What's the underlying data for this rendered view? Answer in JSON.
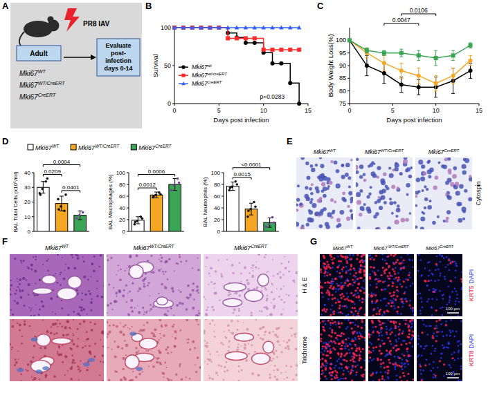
{
  "panel_letters": [
    "A",
    "B",
    "C",
    "D",
    "E",
    "F",
    "G"
  ],
  "schematic": {
    "treatment": "PR8 IAV",
    "group": "Adult",
    "genotypes": [
      "Mki67WT",
      "Mki67WT/CreERT",
      "Mki67CreERT"
    ],
    "outcome": "Evaluate post-infection days 0-14"
  },
  "chart_data": [
    {
      "type": "line",
      "line_style": "step",
      "y_label": "Survival",
      "x_label": "Days post infection",
      "x": [
        0,
        1,
        2,
        3,
        4,
        5,
        6,
        7,
        8,
        9,
        10,
        11,
        12,
        13,
        14
      ],
      "xlim": [
        0,
        15
      ],
      "xticks": [
        0,
        5,
        10,
        15
      ],
      "ylim": [
        0,
        100
      ],
      "yticks": [
        0,
        50,
        100
      ],
      "legend": "lower left",
      "annotations": [
        "p=0.0283"
      ],
      "series": [
        {
          "name": "Mki67wt",
          "color": "#000000",
          "marker": "circle",
          "values": [
            100,
            100,
            100,
            100,
            100,
            100,
            93,
            87,
            80,
            80,
            67,
            53,
            53,
            27,
            0
          ]
        },
        {
          "name": "Mki67wt/creERT",
          "color": "#ff2a2a",
          "marker": "square",
          "values": [
            100,
            100,
            100,
            100,
            100,
            100,
            86,
            86,
            86,
            86,
            71,
            71,
            71,
            71,
            71
          ]
        },
        {
          "name": "Mki67creERT",
          "color": "#3060ff",
          "marker": "triangle",
          "values": [
            100,
            100,
            100,
            100,
            100,
            100,
            100,
            100,
            100,
            100,
            100,
            100,
            100,
            100,
            100
          ]
        }
      ]
    },
    {
      "type": "line",
      "y_label": "Body Weight Loss(%)",
      "x_label": "Days post infection",
      "x": [
        0,
        2,
        4,
        6,
        8,
        10,
        12,
        14
      ],
      "xlim": [
        0,
        15
      ],
      "xticks": [
        0,
        5,
        10,
        15
      ],
      "ylim": [
        75,
        105
      ],
      "yticks": [
        75,
        80,
        85,
        90,
        95,
        100
      ],
      "series": [
        {
          "color": "#000000",
          "marker": "circle",
          "values": [
            100,
            90,
            87,
            82.5,
            81.5,
            81.5,
            84,
            88
          ],
          "errors": [
            0,
            4,
            4,
            3,
            3,
            4,
            5,
            3
          ]
        },
        {
          "color": "#f5a623",
          "marker": "circle",
          "values": [
            100,
            95,
            91,
            88,
            86,
            83,
            86,
            92
          ],
          "errors": [
            0,
            2,
            3,
            3,
            3,
            3,
            3,
            2
          ]
        },
        {
          "color": "#3aa655",
          "marker": "square",
          "values": [
            100,
            96,
            95,
            95,
            94,
            93,
            94,
            98
          ],
          "errors": [
            0,
            1,
            1,
            1.5,
            2,
            3,
            2,
            1
          ]
        }
      ],
      "comparisons": [
        {
          "x": [
            4,
            8
          ],
          "label": "0.0047"
        },
        {
          "x": [
            6,
            10
          ],
          "label": "0.0106"
        }
      ]
    },
    {
      "type": "bar",
      "y_label": "BAL Total Cells (x10⁵/ml)",
      "categories": [
        null,
        null,
        null
      ],
      "tick_labels": "y",
      "colors": [
        "#ffffff",
        "#f5a623",
        "#3aa655"
      ],
      "values": [
        30,
        19,
        11
      ],
      "errors": [
        4,
        5,
        3
      ],
      "points": [
        [
          26,
          34,
          29,
          36,
          25
        ],
        [
          22,
          14,
          17,
          25,
          15
        ],
        [
          9,
          13,
          11
        ]
      ],
      "ylim": [
        0,
        40
      ],
      "yticks": [
        0,
        10,
        20,
        30,
        40
      ],
      "comparisons": [
        {
          "pair": [
            1,
            2
          ],
          "label": "0.0401"
        },
        {
          "pair": [
            0,
            1
          ],
          "label": "0.0209"
        },
        {
          "pair": [
            0,
            2
          ],
          "label": "0.0004"
        }
      ]
    },
    {
      "type": "bar",
      "y_label": "BAL Macrophages (%)",
      "categories": [
        null,
        null,
        null
      ],
      "tick_labels": "y",
      "colors": [
        "#ffffff",
        "#f5a623",
        "#3aa655"
      ],
      "values": [
        19,
        62,
        80
      ],
      "errors": [
        6,
        5,
        10
      ],
      "points": [
        [
          12,
          25,
          18,
          22,
          16
        ],
        [
          58,
          66,
          62,
          63,
          60
        ],
        [
          70,
          90,
          78,
          83
        ]
      ],
      "ylim": [
        0,
        100
      ],
      "yticks": [
        0,
        20,
        40,
        60,
        80,
        100
      ],
      "comparisons": [
        {
          "pair": [
            0,
            1
          ],
          "label": "0.0012"
        },
        {
          "pair": [
            0,
            2
          ],
          "label": "0.0006"
        }
      ]
    },
    {
      "type": "bar",
      "y_label": "BAL Neutrophils (%)",
      "categories": [
        null,
        null,
        null
      ],
      "tick_labels": "y",
      "colors": [
        "#ffffff",
        "#f5a623",
        "#3aa655"
      ],
      "values": [
        77,
        38,
        15
      ],
      "errors": [
        7,
        10,
        8
      ],
      "points": [
        [
          70,
          85,
          76,
          80,
          74
        ],
        [
          25,
          50,
          38,
          42,
          35
        ],
        [
          8,
          24,
          12,
          15
        ]
      ],
      "ylim": [
        0,
        100
      ],
      "yticks": [
        0,
        20,
        40,
        60,
        80,
        100
      ],
      "comparisons": [
        {
          "pair": [
            0,
            1
          ],
          "label": "0.0015"
        },
        {
          "pair": [
            0,
            2
          ],
          "label": "<0.0001"
        }
      ]
    }
  ],
  "d_legend": {
    "labels": [
      "Mki67WT",
      "Mki67WT/CreERT",
      "Mki67CreERT"
    ],
    "colors": [
      "#ffffff",
      "#f5a623",
      "#3aa655"
    ]
  },
  "images": {
    "E": {
      "columns": [
        "Mki67WT",
        "Mki67WT/CreERT",
        "Mki67CreERT"
      ],
      "row_label": "Cytospin"
    },
    "F": {
      "columns": [
        "Mki67WT",
        "Mki67WT/CreERT",
        "Mki67CreERT"
      ],
      "rows": [
        "H & E",
        "Trichrome"
      ]
    },
    "G": {
      "columns": [
        "Mki67WT",
        "Mki67 WT/CreERT",
        "Mki67CreERT"
      ],
      "rows": [
        {
          "marker": "KRT5",
          "stain": "DAPI"
        },
        {
          "marker": "KRT8",
          "stain": "DAPI"
        }
      ],
      "scale_bar": "100 μm"
    }
  }
}
